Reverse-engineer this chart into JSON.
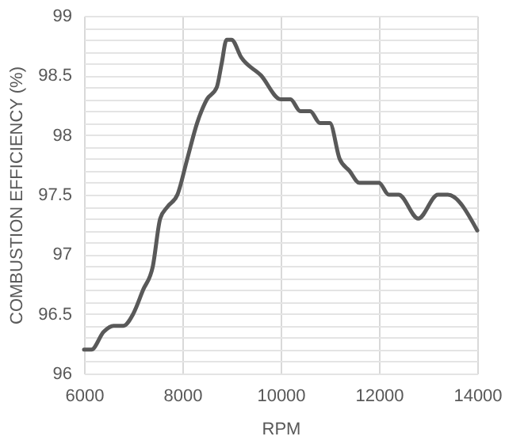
{
  "chart_data": {
    "type": "line",
    "xlabel": "RPM",
    "ylabel": "COMBUSTION EFFICIENCY (%)",
    "x": [
      6000,
      6150,
      6400,
      6600,
      6800,
      7000,
      7200,
      7400,
      7550,
      7700,
      7900,
      8100,
      8300,
      8500,
      8700,
      8800,
      8900,
      9000,
      9200,
      9600,
      10000,
      10200,
      10400,
      10600,
      10800,
      11000,
      11200,
      11400,
      11600,
      12000,
      12200,
      12400,
      12800,
      13200,
      13400,
      14000
    ],
    "series": [
      {
        "color": "#595959",
        "values": [
          96.2,
          96.2,
          96.35,
          96.4,
          96.4,
          96.5,
          96.7,
          96.9,
          97.3,
          97.4,
          97.5,
          97.8,
          98.1,
          98.3,
          98.4,
          98.6,
          98.8,
          98.8,
          98.65,
          98.5,
          98.3,
          98.3,
          98.2,
          98.2,
          98.1,
          98.1,
          97.8,
          97.7,
          97.6,
          97.6,
          97.5,
          97.5,
          97.3,
          97.5,
          97.5,
          97.2
        ]
      }
    ],
    "xlim": [
      6000,
      14000
    ],
    "xticks": [
      6000,
      8000,
      10000,
      12000,
      14000
    ],
    "ylim": [
      96,
      99
    ],
    "yticks": [
      96,
      {
        "value": 96.1,
        "label": null
      },
      {
        "value": 96.2,
        "label": null
      },
      {
        "value": 96.3,
        "label": null
      },
      {
        "value": 96.4,
        "label": null
      },
      96.5,
      {
        "value": 96.6,
        "label": null
      },
      {
        "value": 96.7,
        "label": null
      },
      {
        "value": 96.8,
        "label": null
      },
      {
        "value": 96.9,
        "label": null
      },
      97,
      {
        "value": 97.1,
        "label": null
      },
      {
        "value": 97.2,
        "label": null
      },
      {
        "value": 97.3,
        "label": null
      },
      {
        "value": 97.4,
        "label": null
      },
      97.5,
      {
        "value": 97.6,
        "label": null
      },
      {
        "value": 97.7,
        "label": null
      },
      {
        "value": 97.8,
        "label": null
      },
      {
        "value": 97.9,
        "label": null
      },
      98,
      {
        "value": 98.1,
        "label": null
      },
      {
        "value": 98.2,
        "label": null
      },
      {
        "value": 98.3,
        "label": null
      },
      {
        "value": 98.4,
        "label": null
      },
      98.5,
      {
        "value": 98.6,
        "label": null
      },
      {
        "value": 98.7,
        "label": null
      },
      {
        "value": 98.8,
        "label": null
      },
      {
        "value": 98.9,
        "label": null
      },
      99
    ],
    "grid": true,
    "legend": false,
    "line_style": "solid",
    "marker": "none"
  }
}
